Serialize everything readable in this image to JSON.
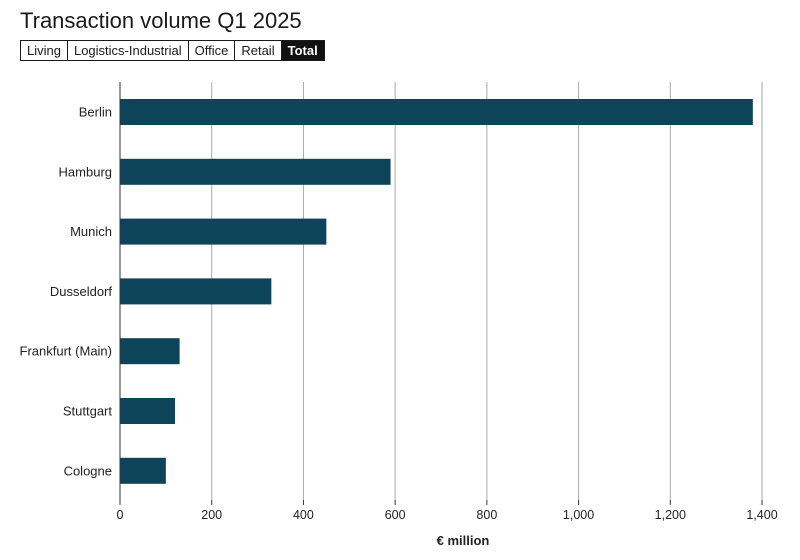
{
  "header": {
    "title": "Transaction volume Q1 2025"
  },
  "tabs": [
    {
      "label": "Living",
      "active": false
    },
    {
      "label": "Logistics-Industrial",
      "active": false
    },
    {
      "label": "Office",
      "active": false
    },
    {
      "label": "Retail",
      "active": false
    },
    {
      "label": "Total",
      "active": true
    }
  ],
  "colors": {
    "bar": "#0d4459",
    "grid": "#aaaaaa",
    "axis": "#333333",
    "text": "#222222"
  },
  "chart_data": {
    "type": "bar",
    "orientation": "horizontal",
    "title": "Transaction volume Q1 2025",
    "categories": [
      "Berlin",
      "Hamburg",
      "Munich",
      "Dusseldorf",
      "Frankfurt (Main)",
      "Stuttgart",
      "Cologne"
    ],
    "values": [
      1380,
      590,
      450,
      330,
      130,
      120,
      100
    ],
    "xlabel": "€ million",
    "ylabel": "",
    "xlim": [
      0,
      1400
    ],
    "xticks": [
      0,
      200,
      400,
      600,
      800,
      1000,
      1200,
      1400
    ],
    "xtick_labels": [
      "0",
      "200",
      "400",
      "600",
      "800",
      "1,000",
      "1,200",
      "1,400"
    ],
    "grid": true
  }
}
